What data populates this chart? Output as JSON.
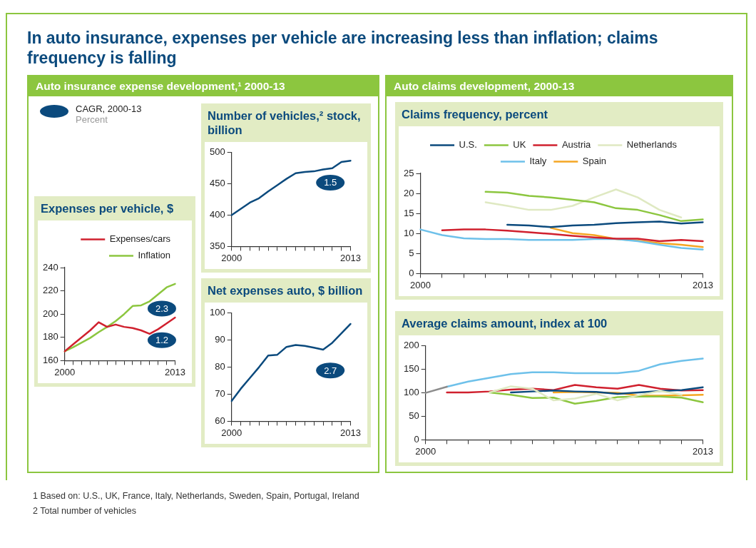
{
  "chart_data": [
    {
      "type": "other",
      "title": "In auto insurance, expenses per vehicle are increasing less than inflation; claims frequency is falling",
      "annotations": [
        "Auto insurance expense development,¹ 2000-13",
        "Auto claims development, 2000-13",
        "CAGR, 2000-13",
        "Percent",
        "1 Based on: U.S., UK, France, Italy, Netherlands, Sweden, Spain, Portugal, Ireland",
        "2 Total number of vehicles"
      ]
    },
    {
      "type": "line",
      "title": "Expenses per vehicle, $",
      "categories": [
        "2000",
        null,
        null,
        null,
        null,
        null,
        null,
        null,
        null,
        null,
        null,
        null,
        null,
        "2013"
      ],
      "ylim": [
        160,
        240
      ],
      "yticks": [
        160,
        180,
        200,
        220,
        240
      ],
      "grid": false,
      "legend": "top right",
      "annotations": [
        "2.3",
        "1.2"
      ],
      "series": [
        {
          "name": "Expenses/cars",
          "color": "#d0202e",
          "values": [
            168,
            174,
            180,
            186,
            193,
            189,
            191,
            189,
            188,
            186,
            183,
            187,
            192,
            197
          ]
        },
        {
          "name": "Inflation",
          "color": "#8cc63f",
          "values": [
            168,
            171.5,
            175.5,
            179.5,
            184.5,
            189,
            194,
            200,
            207,
            207.5,
            211,
            217,
            223,
            226
          ]
        }
      ]
    },
    {
      "type": "line",
      "title": "Number of vehicles,² stock, billion",
      "categories": [
        "2000",
        null,
        null,
        null,
        null,
        null,
        null,
        null,
        null,
        null,
        null,
        null,
        null,
        "2013"
      ],
      "ylim": [
        350,
        500
      ],
      "yticks": [
        350,
        400,
        450,
        500
      ],
      "grid": false,
      "annotations": [
        "1.5"
      ],
      "series": [
        {
          "color": "#0b4a7d",
          "values": [
            400,
            410,
            420,
            427,
            438,
            448,
            458,
            467,
            469,
            470,
            473,
            475,
            485,
            487
          ]
        }
      ]
    },
    {
      "type": "line",
      "title": "Net expenses auto, $ billion",
      "categories": [
        "2000",
        null,
        null,
        null,
        null,
        null,
        null,
        null,
        null,
        null,
        null,
        null,
        null,
        "2013"
      ],
      "ylim": [
        60,
        100
      ],
      "yticks": [
        60,
        70,
        80,
        90,
        100
      ],
      "grid": false,
      "annotations": [
        "2.7"
      ],
      "series": [
        {
          "color": "#0b4a7d",
          "values": [
            67.5,
            72,
            76,
            80,
            84.3,
            84.6,
            87.5,
            88.2,
            87.9,
            87.2,
            86.5,
            89,
            92.5,
            96
          ]
        }
      ]
    },
    {
      "type": "line",
      "title": "Claims frequency, percent",
      "categories": [
        "2000",
        null,
        null,
        null,
        null,
        null,
        null,
        null,
        null,
        null,
        null,
        null,
        null,
        "2013"
      ],
      "ylim": [
        0,
        25
      ],
      "yticks": [
        0,
        5,
        10,
        15,
        20,
        25
      ],
      "grid": false,
      "legend": "top",
      "series": [
        {
          "name": "U.S.",
          "color": "#0b4a7d",
          "values": [
            null,
            null,
            null,
            null,
            12.2,
            12,
            11.6,
            12,
            12.2,
            12.6,
            12.8,
            13,
            12.5,
            12.8
          ]
        },
        {
          "name": "UK",
          "color": "#8cc63f",
          "values": [
            null,
            null,
            null,
            20.4,
            20.2,
            19.4,
            19,
            18.4,
            17.8,
            16.3,
            15.9,
            14.6,
            13.1,
            13.5
          ]
        },
        {
          "name": "Austria",
          "color": "#d0202e",
          "values": [
            null,
            10.8,
            11,
            11,
            10.7,
            10.3,
            9.9,
            9.4,
            9,
            8.7,
            8.7,
            8.1,
            8.4,
            8.1
          ]
        },
        {
          "name": "Netherlands",
          "color": "#dfe9c2",
          "values": [
            null,
            null,
            null,
            17.8,
            16.9,
            15.9,
            15.9,
            16.9,
            19,
            21,
            19,
            15.9,
            14,
            null
          ]
        },
        {
          "name": "Italy",
          "color": "#6ec1ea",
          "values": [
            11,
            9.6,
            8.8,
            8.6,
            8.6,
            8.4,
            8.4,
            8.4,
            8.6,
            8.6,
            8.1,
            7.2,
            6.4,
            6
          ]
        },
        {
          "name": "Spain",
          "color": "#f5a623",
          "values": [
            null,
            null,
            null,
            null,
            null,
            null,
            11.4,
            10.1,
            9.6,
            8.6,
            8.2,
            7.6,
            7.2,
            6.6
          ]
        }
      ]
    },
    {
      "type": "line",
      "title": "Average claims amount, index at 100",
      "categories": [
        "2000",
        null,
        null,
        null,
        null,
        null,
        null,
        null,
        null,
        null,
        null,
        null,
        null,
        "2013"
      ],
      "ylim": [
        0,
        200
      ],
      "yticks": [
        0,
        50,
        100,
        150,
        200
      ],
      "grid": false,
      "series": [
        {
          "color": "#8c8c8c",
          "values": [
            100,
            113,
            null,
            null,
            null,
            null,
            null,
            null,
            null,
            null,
            null,
            null,
            null,
            null
          ]
        },
        {
          "color": "#6ec1ea",
          "values": [
            null,
            113,
            124,
            132,
            140,
            144,
            144,
            142,
            142,
            142,
            147,
            161,
            168,
            173
          ]
        },
        {
          "color": "#dfe9c2",
          "values": [
            null,
            null,
            null,
            101,
            114,
            109,
            84,
            88,
            98,
            84,
            95,
            104,
            96,
            null
          ]
        },
        {
          "color": "#8cc63f",
          "values": [
            null,
            null,
            null,
            101,
            96,
            89,
            90,
            77,
            83,
            91,
            92,
            92,
            90,
            80
          ]
        },
        {
          "color": "#0b4a7d",
          "values": [
            null,
            null,
            null,
            null,
            101,
            103,
            105,
            103,
            102,
            98,
            101,
            104,
            106,
            112
          ]
        },
        {
          "color": "#f5a623",
          "values": [
            null,
            null,
            null,
            null,
            null,
            null,
            101,
            102,
            101,
            100,
            94,
            94,
            95,
            96
          ]
        },
        {
          "color": "#d0202e",
          "values": [
            null,
            101,
            101,
            103,
            107,
            109,
            106,
            117,
            112,
            109,
            117,
            109,
            105,
            106
          ]
        }
      ]
    }
  ]
}
